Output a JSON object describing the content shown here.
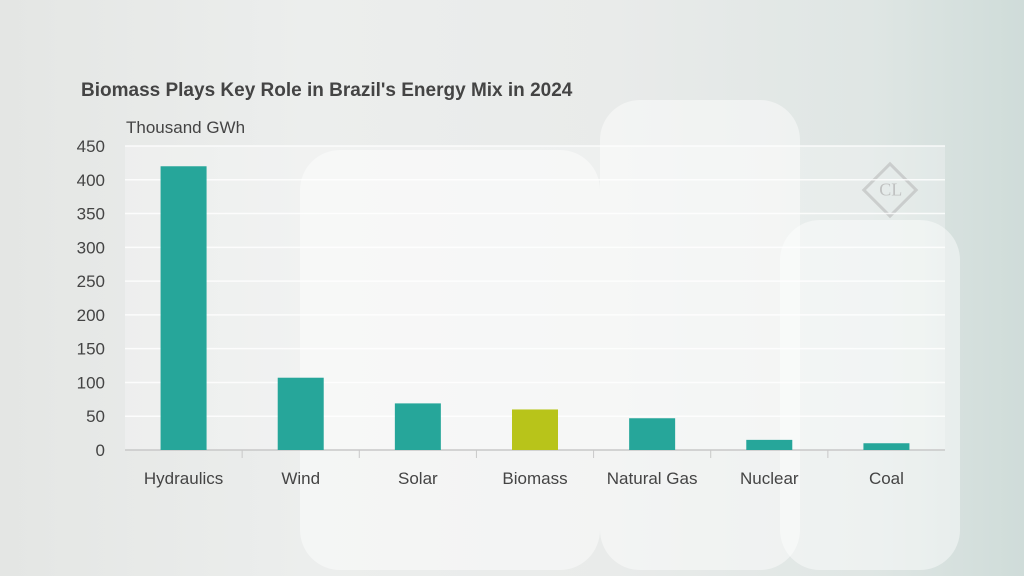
{
  "chart_data": {
    "type": "bar",
    "title": "Biomass Plays Key Role in Brazil's Energy Mix in 2024",
    "ylabel": "Thousand GWh",
    "xlabel": "",
    "categories": [
      "Hydraulics",
      "Wind",
      "Solar",
      "Biomass",
      "Natural Gas",
      "Nuclear",
      "Coal"
    ],
    "values": [
      420,
      107,
      69,
      60,
      47,
      15,
      10
    ],
    "highlight": "Biomass",
    "ylim": [
      0,
      450
    ],
    "yticks": [
      0,
      50,
      100,
      150,
      200,
      250,
      300,
      350,
      400,
      450
    ],
    "grid": true,
    "colors": {
      "default": "#26a69a",
      "highlight": "#b8c41a"
    }
  },
  "logo": "CL"
}
